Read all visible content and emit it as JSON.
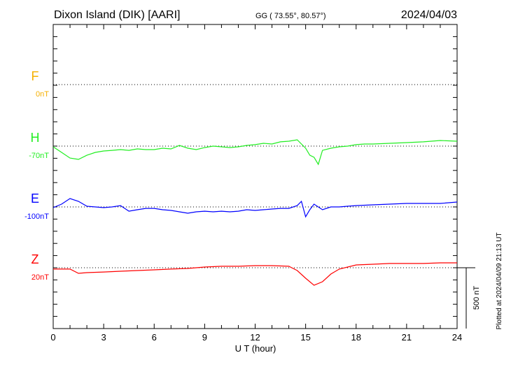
{
  "header": {
    "station": "Dixon Island (DIK)  [AARI]",
    "coords": "GG ( 73.55°,  80.57°)",
    "date": "2024/04/03"
  },
  "footer": {
    "plotted": "Plotted at 2024/04/09 21:13 UT",
    "scale_label": "500 nT"
  },
  "chart_data": {
    "type": "line",
    "title": "Dixon Island (DIK)  [AARI]",
    "xlabel": "U T (hour)",
    "xlim": [
      0,
      24
    ],
    "xticks": [
      "0",
      "3",
      "6",
      "9",
      "12",
      "15",
      "18",
      "21",
      "24"
    ],
    "scale_nT": 500,
    "grid": "dotted baselines per component",
    "series": [
      {
        "name": "F",
        "baseline_label": "0nT",
        "baseline": 0,
        "color": "#f5b000",
        "x": [],
        "values": []
      },
      {
        "name": "H",
        "baseline_label": "-70nT",
        "baseline": -70,
        "color": "#22ee22",
        "x": [
          0,
          0.5,
          1,
          1.5,
          2,
          2.5,
          3,
          3.5,
          4,
          4.5,
          5,
          5.5,
          6,
          6.5,
          7,
          7.5,
          8,
          8.5,
          9,
          9.5,
          10,
          10.5,
          11,
          11.5,
          12,
          12.5,
          13,
          13.5,
          14,
          14.5,
          15,
          15.25,
          15.5,
          15.75,
          16,
          16.5,
          17,
          17.5,
          18,
          18.5,
          19,
          20,
          21,
          22,
          23,
          24
        ],
        "values": [
          -76,
          -122,
          -168,
          -179,
          -145,
          -122,
          -110,
          -105,
          -99,
          -105,
          -93,
          -99,
          -99,
          -87,
          -93,
          -64,
          -87,
          -99,
          -82,
          -70,
          -76,
          -82,
          -76,
          -64,
          -58,
          -47,
          -53,
          -35,
          -30,
          -18,
          -87,
          -145,
          -162,
          -220,
          -105,
          -87,
          -76,
          -70,
          -58,
          -53,
          -53,
          -47,
          -41,
          -35,
          -24,
          -30
        ]
      },
      {
        "name": "E",
        "baseline_label": "-100nT",
        "baseline": -100,
        "color": "#0000ff",
        "x": [
          0,
          0.5,
          1,
          1.5,
          2,
          2.5,
          3,
          3.5,
          4,
          4.5,
          5,
          5.5,
          6,
          6.5,
          7,
          7.5,
          8,
          8.5,
          9,
          9.5,
          10,
          10.5,
          11,
          11.5,
          12,
          12.5,
          13,
          13.5,
          14,
          14.5,
          14.75,
          15,
          15.25,
          15.5,
          16,
          16.5,
          17,
          17.5,
          18,
          19,
          20,
          21,
          22,
          23,
          24
        ],
        "values": [
          -106,
          -77,
          -31,
          -54,
          -94,
          -100,
          -106,
          -100,
          -89,
          -135,
          -123,
          -112,
          -112,
          -123,
          -129,
          -140,
          -152,
          -140,
          -135,
          -140,
          -135,
          -140,
          -135,
          -123,
          -129,
          -123,
          -117,
          -112,
          -112,
          -89,
          -54,
          -181,
          -123,
          -77,
          -123,
          -100,
          -100,
          -94,
          -89,
          -83,
          -77,
          -71,
          -71,
          -71,
          -60
        ]
      },
      {
        "name": "Z",
        "baseline_label": "20nT",
        "baseline": 20,
        "color": "#ff0000",
        "x": [
          0,
          1,
          1.5,
          2,
          3,
          4,
          5,
          6,
          7,
          8,
          9,
          10,
          11,
          12,
          13,
          14,
          14.5,
          15,
          15.5,
          16,
          16.5,
          17,
          17.5,
          18,
          19,
          20,
          21,
          22,
          23,
          24
        ],
        "values": [
          9,
          9,
          -26,
          -20,
          -15,
          -9,
          -3,
          3,
          9,
          14,
          26,
          32,
          32,
          37,
          37,
          32,
          -3,
          -66,
          -124,
          -95,
          -32,
          9,
          26,
          43,
          49,
          55,
          55,
          55,
          60,
          60
        ]
      }
    ]
  }
}
